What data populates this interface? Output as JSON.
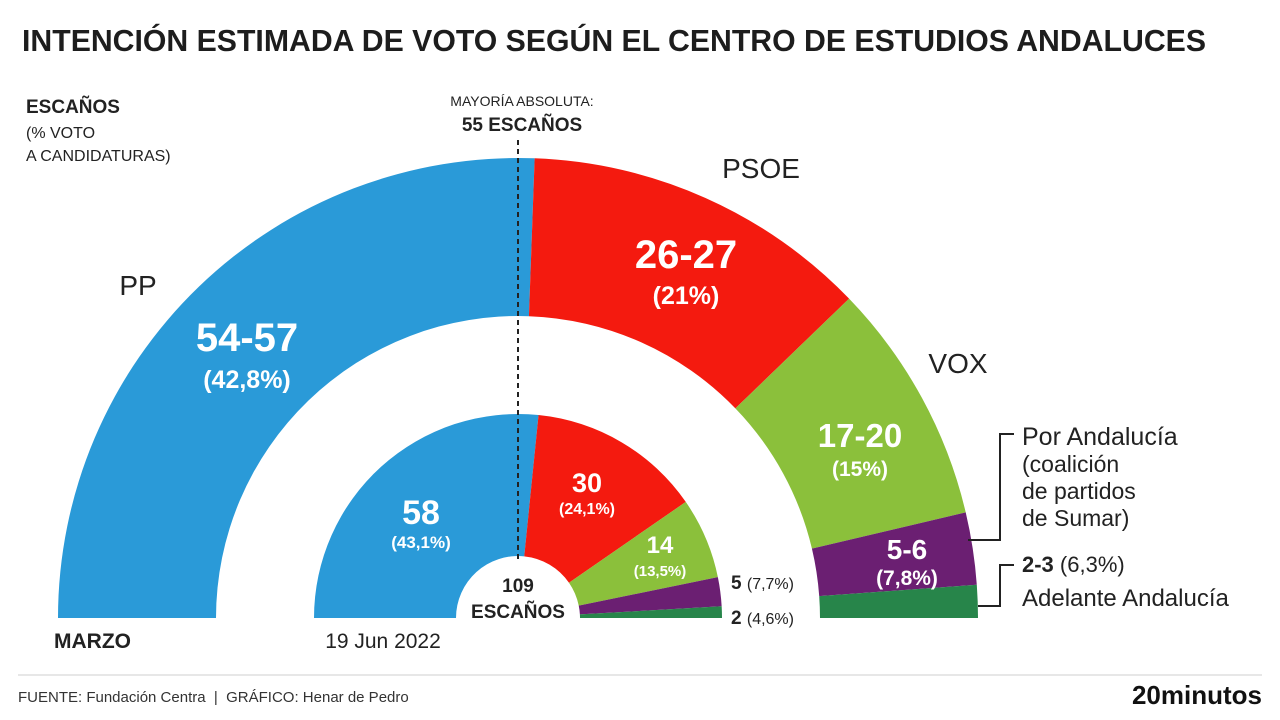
{
  "title": "INTENCIÓN ESTIMADA DE VOTO SEGÚN EL CENTRO DE ESTUDIOS ANDALUCES",
  "legend_key": {
    "line1": "ESCAÑOS",
    "line2": "(% VOTO",
    "line3": "A CANDIDATURAS)"
  },
  "majority": {
    "line1": "MAYORÍA ABSOLUTA:",
    "line2": "55 ESCAÑOS"
  },
  "center_label": {
    "line1": "109",
    "line2": "ESCAÑOS"
  },
  "footer": {
    "source": "FUENTE: Fundación Centra  |  GRÁFICO: Henar de Pedro",
    "logo": "20minutos"
  },
  "chart_data": [
    {
      "type": "pie",
      "ring": "outer",
      "label": "MARZO",
      "total_seats": 109,
      "majority_seats": 55,
      "series": [
        {
          "name": "PP",
          "seats": "54-57",
          "seats_mid": 55.5,
          "vote_pct": "(42,8%)",
          "color": "#2a9ad8"
        },
        {
          "name": "PSOE",
          "seats": "26-27",
          "seats_mid": 26.5,
          "vote_pct": "(21%)",
          "color": "#f41a0f"
        },
        {
          "name": "VOX",
          "seats": "17-20",
          "seats_mid": 18.5,
          "vote_pct": "(15%)",
          "color": "#8bc03b"
        },
        {
          "name": "Por Andalucía",
          "name_note": [
            "(coalición",
            "de partidos",
            "de Sumar)"
          ],
          "seats": "5-6",
          "seats_mid": 5.5,
          "vote_pct": "(7,8%)",
          "color": "#6b1f72"
        },
        {
          "name": "Adelante Andalucía",
          "seats": "2-3",
          "seats_mid": 2.5,
          "vote_pct": "(6,3%)",
          "color": "#27854a"
        }
      ]
    },
    {
      "type": "pie",
      "ring": "inner",
      "label": "19 Jun 2022",
      "total_seats": 109,
      "series": [
        {
          "party": "PP",
          "seats": "58",
          "seats_value": 58,
          "vote_pct": "(43,1%)",
          "color": "#2a9ad8"
        },
        {
          "party": "PSOE",
          "seats": "30",
          "seats_value": 30,
          "vote_pct": "(24,1%)",
          "color": "#f41a0f"
        },
        {
          "party": "VOX",
          "seats": "14",
          "seats_value": 14,
          "vote_pct": "(13,5%)",
          "color": "#8bc03b"
        },
        {
          "party": "Por Andalucía",
          "seats": "5",
          "seats_value": 5,
          "vote_pct": "(7,7%)",
          "color": "#6b1f72"
        },
        {
          "party": "Adelante Andalucía",
          "seats": "2",
          "seats_value": 2,
          "vote_pct": "(4,6%)",
          "color": "#27854a"
        }
      ]
    }
  ]
}
